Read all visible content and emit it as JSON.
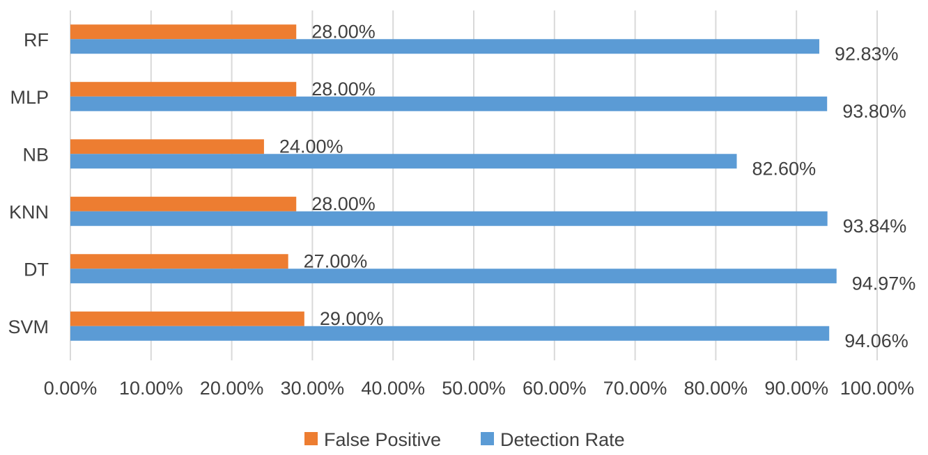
{
  "chart_data": {
    "type": "bar",
    "orientation": "horizontal",
    "categories": [
      "SVM",
      "DT",
      "KNN",
      "NB",
      "MLP",
      "RF"
    ],
    "series": [
      {
        "name": "False Positive",
        "color": "#ed7d31",
        "values": [
          29.0,
          27.0,
          28.0,
          24.0,
          28.0,
          28.0
        ],
        "labels": [
          "29.00%",
          "27.00%",
          "28.00%",
          "24.00%",
          "28.00%",
          "28.00%"
        ]
      },
      {
        "name": "Detection Rate",
        "color": "#5b9bd5",
        "values": [
          94.06,
          94.97,
          93.84,
          82.6,
          93.8,
          92.83
        ],
        "labels": [
          "94.06%",
          "94.97%",
          "93.84%",
          "82.60%",
          "93.80%",
          "92.83%"
        ]
      }
    ],
    "x_ticks": [
      "0.00%",
      "10.00%",
      "20.00%",
      "30.00%",
      "40.00%",
      "50.00%",
      "60.00%",
      "70.00%",
      "80.00%",
      "90.00%",
      "100.00%"
    ],
    "xlim": [
      0,
      100
    ],
    "grid": "vertical",
    "legend_position": "bottom",
    "title": "",
    "xlabel": "",
    "ylabel": ""
  }
}
